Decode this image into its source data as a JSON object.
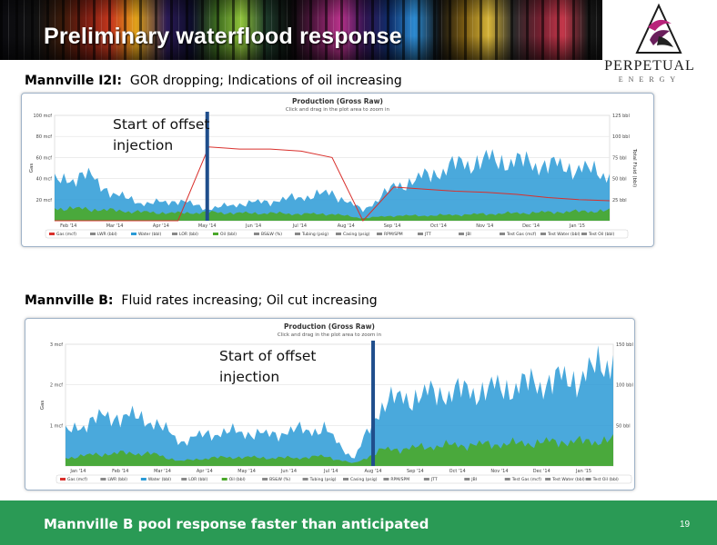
{
  "slide": {
    "title": "Preliminary waterflood response",
    "footer": "Mannville B pool response faster than anticipated",
    "page_number": "19"
  },
  "logo": {
    "word": "PERPETUAL",
    "sub": "ENERGY"
  },
  "sections": [
    {
      "label": "Mannville I2I:",
      "note": "GOR dropping; Indications of oil increasing",
      "callout": [
        "Start of offset",
        "injection"
      ]
    },
    {
      "label": "Mannville B:",
      "note": "Fluid rates increasing; Oil cut increasing",
      "callout": [
        "Start of offset",
        "injection"
      ]
    }
  ],
  "colors": {
    "gas": "#d9302c",
    "water": "#2a9ad6",
    "oil": "#4aa82a",
    "marker": "#1f4e8c",
    "footer": "#2a9a55"
  },
  "chart_data": [
    {
      "type": "area",
      "title": "Production (Gross Raw)",
      "subtitle": "Click and drag in the plot area to zoom in",
      "ylabel": "Gas",
      "y2label": "Total Fluid (bbl)",
      "y_ticks": [
        "100 mcf",
        "80 mcf",
        "60 mcf",
        "40 mcf",
        "20 mcf"
      ],
      "y2_ticks": [
        "125 bbl",
        "100 bbl",
        "75 bbl",
        "50 bbl",
        "25 bbl"
      ],
      "x_ticks": [
        "Feb '14",
        "Mar '14",
        "Apr '14",
        "May '14",
        "Jun '14",
        "Jul '14",
        "Aug '14",
        "Sep '14",
        "Oct '14",
        "Nov '14",
        "Dec '14",
        "Jan '15"
      ],
      "ylim": [
        0,
        100
      ],
      "y2lim": [
        0,
        125
      ],
      "injection_start": "May '14",
      "legend": [
        "Gas (mcf)",
        "LWR (bbl)",
        "Water (bbl)",
        "LOR (bbl)",
        "Oil (bbl)",
        "BS&W (%)",
        "Tubing (psig)",
        "Casing (psig)",
        "RPM/SPM",
        "JTT",
        "JBI",
        "Test Gas (mcf)",
        "Test Water (bbl)",
        "Test Oil (bbl)"
      ],
      "series": [
        {
          "name": "Gas (mcf)",
          "values": [
            0,
            0,
            0,
            0,
            0,
            70,
            68,
            68,
            66,
            60,
            0,
            32,
            30,
            28,
            27,
            25,
            22,
            20,
            19
          ]
        },
        {
          "name": "Water (bbl)",
          "values": [
            45,
            55,
            30,
            20,
            24,
            14,
            20,
            23,
            28,
            33,
            12,
            40,
            52,
            66,
            72,
            70,
            66,
            62,
            55
          ]
        },
        {
          "name": "Oil (bbl)",
          "values": [
            15,
            14,
            12,
            10,
            9,
            10,
            9,
            9,
            8,
            8,
            3,
            6,
            6,
            7,
            8,
            9,
            10,
            11,
            12
          ]
        }
      ]
    },
    {
      "type": "area",
      "title": "Production (Gross Raw)",
      "subtitle": "Click and drag in the plot area to zoom in",
      "ylabel": "Gas",
      "y2label": "Total Fluid (bbl)",
      "y_ticks": [
        "3 mcf",
        "2 mcf",
        "1 mcf"
      ],
      "y2_ticks": [
        "150 bbl",
        "100 bbl",
        "50 bbl"
      ],
      "x_ticks": [
        "Jan '14",
        "Feb '14",
        "Mar '14",
        "Apr '14",
        "May '14",
        "Jun '14",
        "Jul '14",
        "Aug '14",
        "Sep '14",
        "Oct '14",
        "Nov '14",
        "Dec '14",
        "Jan '15"
      ],
      "ylim": [
        0,
        3
      ],
      "y2lim": [
        0,
        150
      ],
      "injection_start": "Aug '14",
      "legend": [
        "Gas (mcf)",
        "LWR (bbl)",
        "Water (bbl)",
        "LOR (bbl)",
        "Oil (bbl)",
        "BS&W (%)",
        "Tubing (psig)",
        "Casing (psig)",
        "RPM/SPM",
        "JTT",
        "JBI",
        "Test Gas (mcf)",
        "Test Water (bbl)",
        "Test Oil (bbl)"
      ],
      "series": [
        {
          "name": "Water (bbl)",
          "values": [
            40,
            58,
            62,
            56,
            30,
            40,
            42,
            38,
            44,
            45,
            8,
            78,
            85,
            90,
            92,
            95,
            100,
            105,
            110,
            135
          ]
        },
        {
          "name": "Oil (bbl)",
          "values": [
            10,
            14,
            16,
            15,
            6,
            10,
            11,
            10,
            10,
            12,
            3,
            20,
            22,
            25,
            26,
            27,
            28,
            30,
            30,
            32
          ]
        }
      ]
    }
  ]
}
